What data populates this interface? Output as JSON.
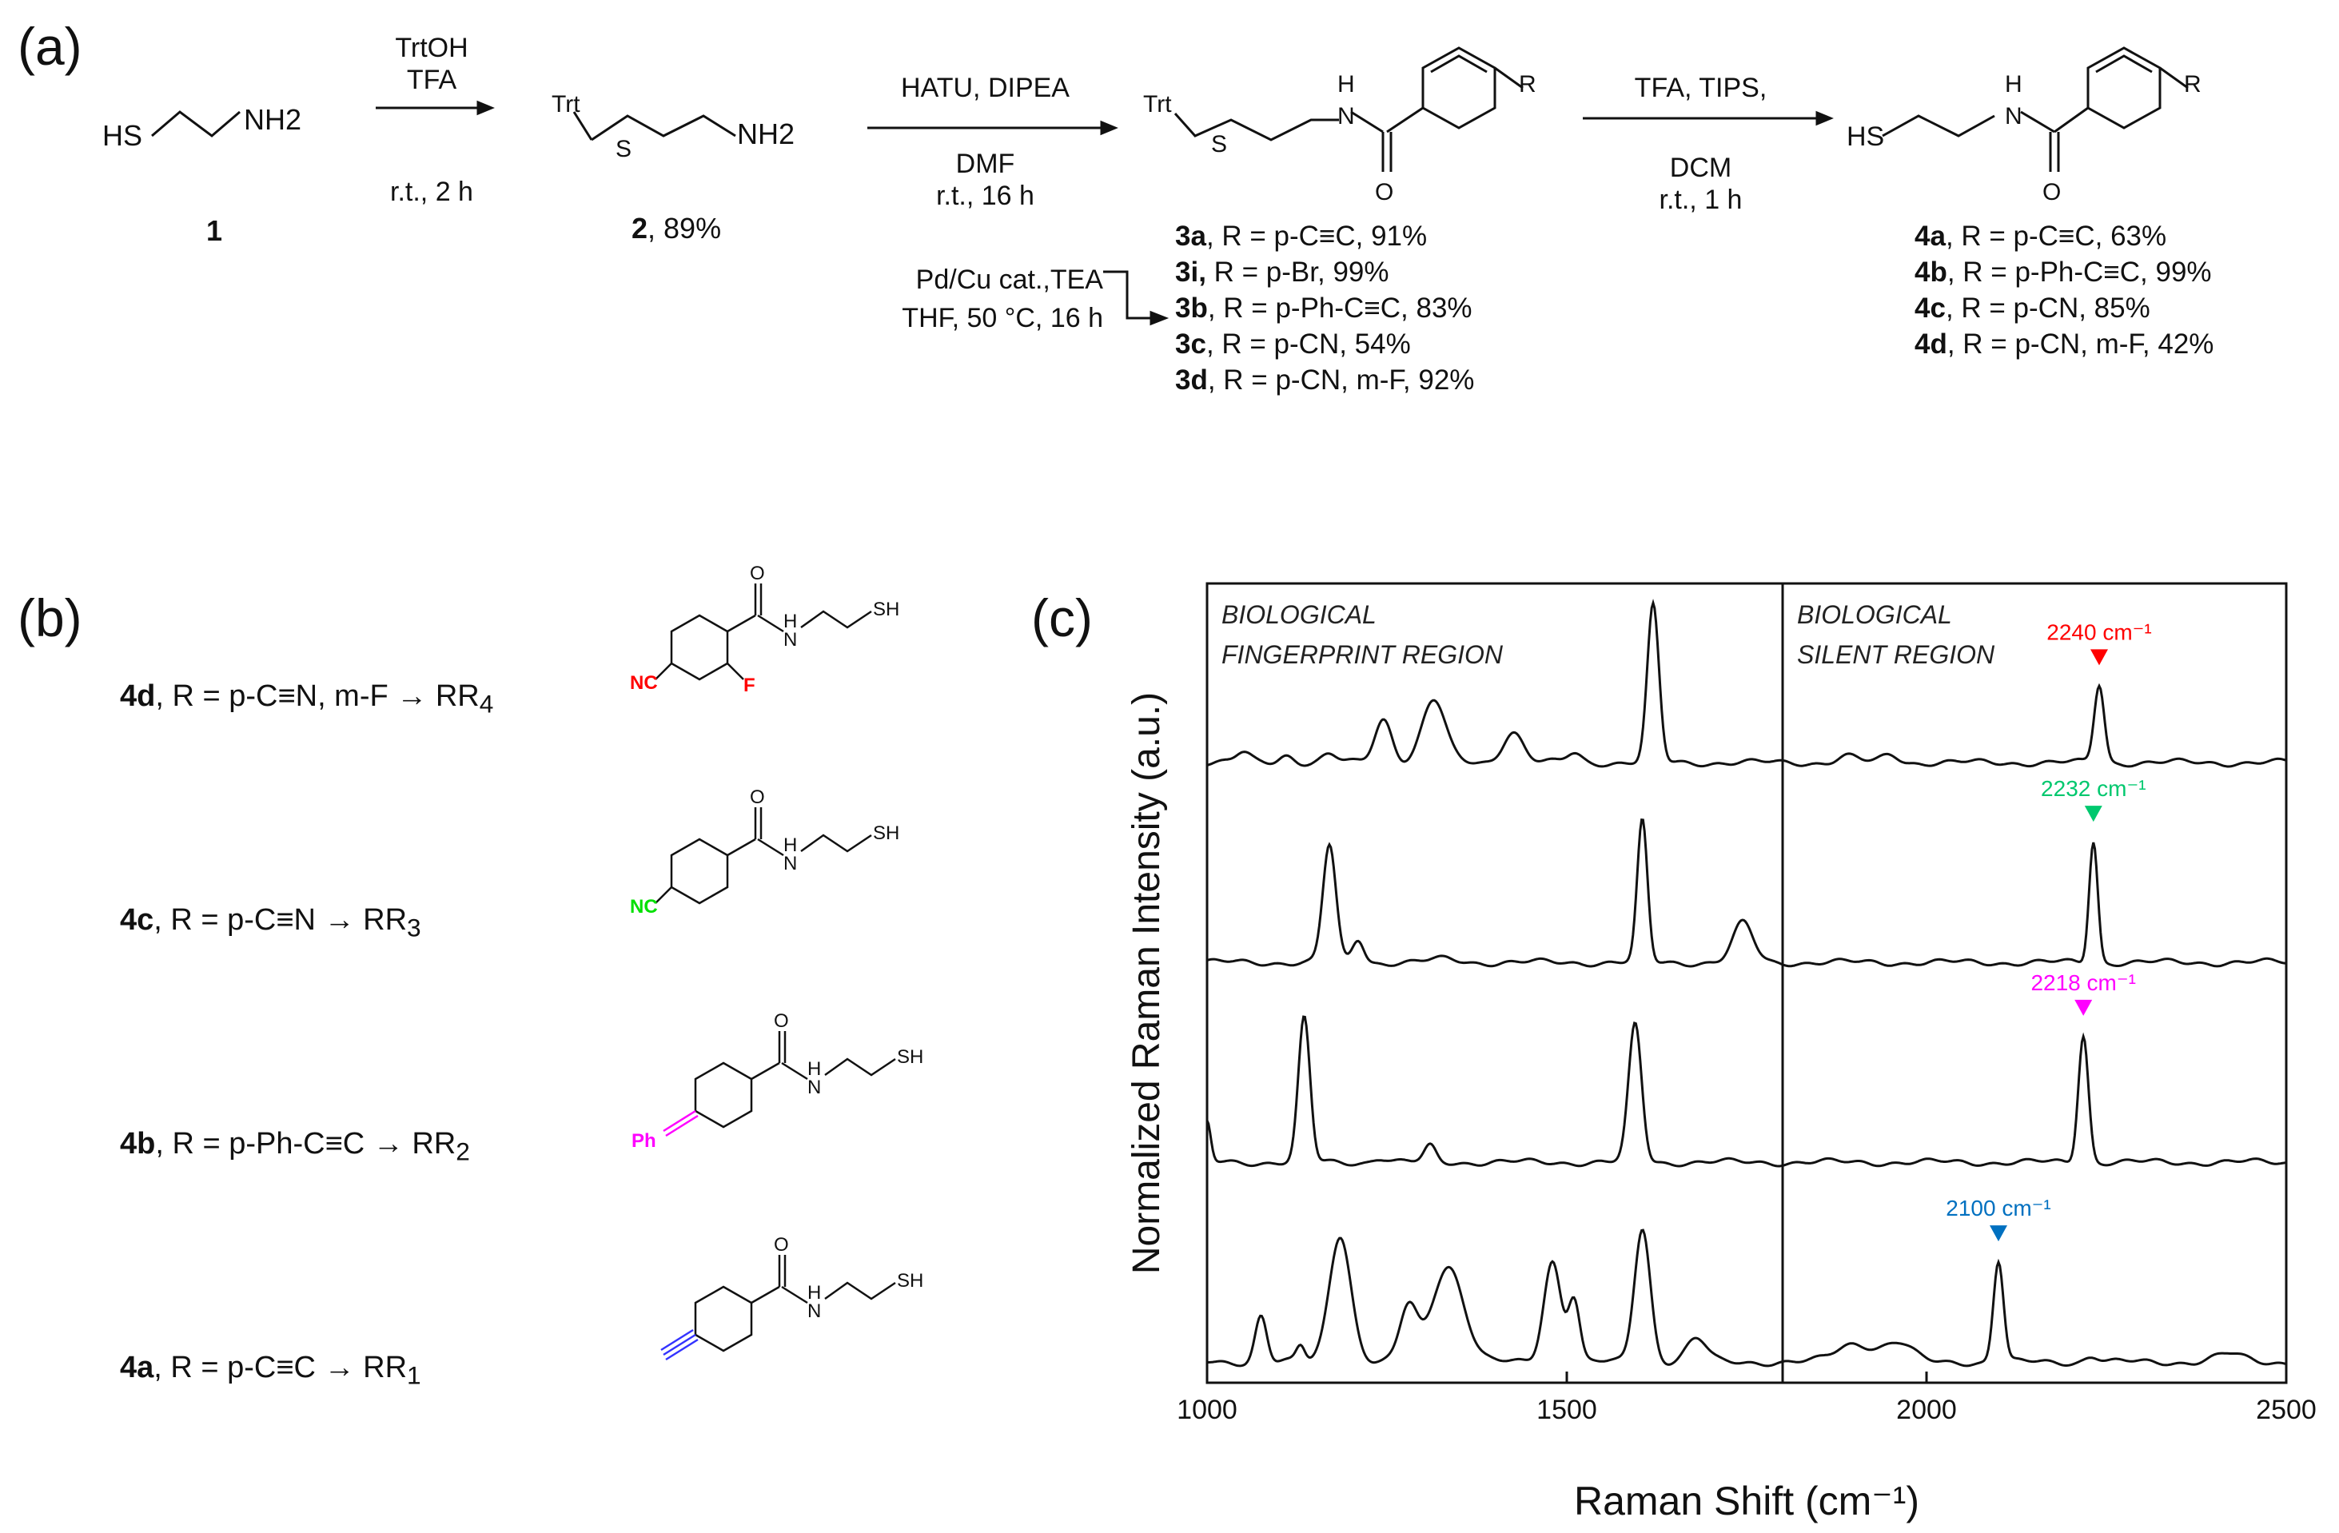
{
  "panels": {
    "a": "(a)",
    "b": "(b)",
    "c": "(c)"
  },
  "scheme": {
    "compound1": {
      "id": "1",
      "formula": [
        "HS",
        "NH2"
      ]
    },
    "step1": {
      "reagents": [
        "TrtOH",
        "TFA"
      ],
      "conditions": [
        "r.t., 2 h"
      ]
    },
    "compound2": {
      "id": "2",
      "yield": ", 89%",
      "labels": [
        "Trt",
        "S",
        "NH2"
      ]
    },
    "step2": {
      "reagents": [
        "HATU, DIPEA"
      ],
      "conditions": [
        "DMF",
        "r.t., 16 h"
      ]
    },
    "compound3_labels": [
      "Trt",
      "S",
      "H",
      "N",
      "O",
      "R"
    ],
    "step3": {
      "reagents": [
        "TFA, TIPS,"
      ],
      "conditions": [
        "DCM",
        "r.t., 1 h"
      ]
    },
    "compound4_labels": [
      "HS",
      "H",
      "N",
      "O",
      "R"
    ],
    "side_step": {
      "conditions": [
        "Pd/Cu cat.,TEA",
        "THF, 50 °C, 16 h"
      ]
    },
    "yields3": [
      {
        "id": "3a",
        "text": ", R = p-C≡C, 91%"
      },
      {
        "id": "3i,",
        "text": " R = p-Br, 99%"
      },
      {
        "id": "3b",
        "text": ", R = p-Ph-C≡C, 83%"
      },
      {
        "id": "3c",
        "text": ", R = p-CN, 54%"
      },
      {
        "id": "3d",
        "text": ", R = p-CN, m-F, 92%"
      }
    ],
    "yields4": [
      {
        "id": "4a",
        "text": ", R = p-C≡C, 63%"
      },
      {
        "id": "4b",
        "text": ", R = p-Ph-C≡C, 99%"
      },
      {
        "id": "4c",
        "text": ", R = p-CN, 85%"
      },
      {
        "id": "4d",
        "text": ", R = p-CN, m-F, 42%"
      }
    ]
  },
  "reporters": [
    {
      "id": "4d",
      "desc": ", R = p-C≡N, m-F",
      "arrow": "→ RR",
      "sub": "4",
      "group": "NC",
      "group_color": "#ff0000",
      "extra": "F",
      "extra_color": "#ff0000"
    },
    {
      "id": "4c",
      "desc": ", R = p-C≡N",
      "arrow": "→ RR",
      "sub": "3",
      "group": "NC",
      "group_color": "#00e000"
    },
    {
      "id": "4b",
      "desc": ", R = p-Ph-C≡C",
      "arrow": "→ RR",
      "sub": "2",
      "group": "Ph",
      "group_color": "#ff00ff"
    },
    {
      "id": "4a",
      "desc": ", R = p-C≡C",
      "arrow": "→ RR",
      "sub": "1",
      "group": "",
      "group_color": "#3333ff"
    }
  ],
  "molecule_labels": {
    "O": "O",
    "H": "H",
    "N": "N",
    "SH": "SH"
  },
  "chart_data": {
    "type": "line",
    "xlabel": "Raman Shift (cm⁻¹)",
    "ylabel": "Normalized Raman Intensity (a.u.)",
    "xlim": [
      1000,
      2500
    ],
    "xticks": [
      1000,
      1500,
      2000,
      2500
    ],
    "divider_x": 1800,
    "regions": [
      {
        "line1": "BIOLOGICAL",
        "line2": "FINGERPRINT REGION"
      },
      {
        "line1": "BIOLOGICAL",
        "line2": "SILENT REGION"
      }
    ],
    "series": [
      {
        "peaks": [
          [
            1620,
            1.0,
            8
          ],
          [
            1245,
            0.28,
            12
          ],
          [
            1315,
            0.4,
            16
          ],
          [
            1425,
            0.2,
            14
          ],
          [
            1510,
            0.06,
            10
          ],
          [
            1050,
            0.06,
            10
          ],
          [
            1110,
            0.05,
            10
          ],
          [
            1170,
            0.05,
            10
          ],
          [
            2240,
            0.5,
            7
          ],
          [
            1890,
            0.04,
            14
          ],
          [
            1950,
            0.05,
            12
          ]
        ],
        "marker": 2240,
        "marker_label": "2240 cm⁻¹",
        "color": "#ff0000"
      },
      {
        "peaks": [
          [
            1170,
            0.75,
            9
          ],
          [
            1210,
            0.15,
            8
          ],
          [
            1605,
            0.9,
            7
          ],
          [
            1745,
            0.25,
            14
          ],
          [
            2232,
            0.78,
            6
          ],
          [
            1330,
            0.02,
            20
          ]
        ],
        "marker": 2232,
        "marker_label": "2232 cm⁻¹",
        "color": "#00c86e"
      },
      {
        "peaks": [
          [
            1135,
            0.92,
            8
          ],
          [
            1310,
            0.1,
            8
          ],
          [
            1595,
            0.88,
            9
          ],
          [
            1000,
            0.25,
            5
          ],
          [
            2218,
            0.82,
            7
          ],
          [
            1240,
            0.03,
            10
          ]
        ],
        "marker": 2218,
        "marker_label": "2218 cm⁻¹",
        "color": "#ff00ff"
      },
      {
        "peaks": [
          [
            1075,
            0.3,
            8
          ],
          [
            1130,
            0.1,
            6
          ],
          [
            1185,
            0.82,
            15
          ],
          [
            1280,
            0.35,
            12
          ],
          [
            1335,
            0.62,
            22
          ],
          [
            1480,
            0.65,
            12
          ],
          [
            1510,
            0.4,
            8
          ],
          [
            1605,
            0.86,
            11
          ],
          [
            1680,
            0.15,
            14
          ],
          [
            2100,
            0.65,
            7
          ],
          [
            1900,
            0.12,
            25
          ],
          [
            1960,
            0.12,
            20
          ],
          [
            2230,
            0.04,
            10
          ],
          [
            2420,
            0.05,
            20
          ]
        ],
        "marker": 2100,
        "marker_label": "2100 cm⁻¹",
        "color": "#0070c0"
      }
    ]
  }
}
